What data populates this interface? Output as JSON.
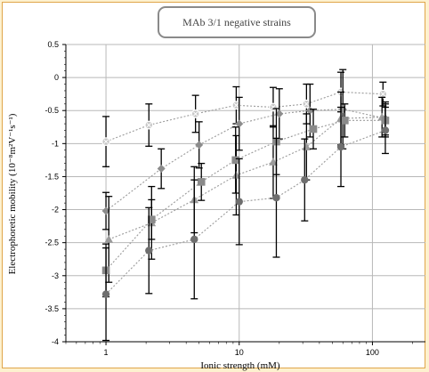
{
  "chart_data": {
    "type": "scatter",
    "title": "MAb 3/1 negative strains",
    "xlabel": "Ionic strength (mM)",
    "ylabel": "Electrophoretic mobility (10⁻⁸m²V⁻¹s⁻¹)",
    "x_scale": "log",
    "xlim": [
      0.5,
      250
    ],
    "ylim": [
      -4,
      0.5
    ],
    "x_ticks": [
      1,
      10,
      100
    ],
    "y_ticks": [
      0.5,
      0,
      -0.5,
      -1,
      -1.5,
      -2,
      -2.5,
      -3,
      -3.5,
      -4
    ],
    "x_tick_labels": [
      "1",
      "10",
      "100"
    ],
    "y_tick_labels": [
      "0.5",
      "0",
      "-0.5",
      "-1",
      "-1.5",
      "-2",
      "-2.5",
      "-3",
      "-3.5",
      "-4"
    ],
    "grid": true,
    "legend": "none",
    "colors": {
      "open_marker": "#c7c7c7",
      "diamond": "#8c8c8c",
      "triangle": "#9a9a9a",
      "square": "#8a8a8a",
      "circle": "#6e6e6e",
      "error_bar": "#000000",
      "trend_line": "#9a9a9a",
      "grid": "#b8b8b8",
      "border": "#e0a64a",
      "page_background": "#fdf1cf"
    },
    "series": [
      {
        "marker": "circle-open",
        "points": [
          {
            "x": 1,
            "y": -0.97,
            "err": 0.38
          },
          {
            "x": 2.1,
            "y": -0.72,
            "err": 0.32
          },
          {
            "x": 4.7,
            "y": -0.55,
            "err": 0.28
          },
          {
            "x": 9.5,
            "y": -0.42,
            "err": 0.28
          },
          {
            "x": 18,
            "y": -0.45,
            "err": 0.3
          },
          {
            "x": 32,
            "y": -0.4,
            "err": 0.3
          },
          {
            "x": 58,
            "y": -0.22,
            "err": 0.3
          },
          {
            "x": 120,
            "y": -0.25,
            "err": 0.18
          }
        ]
      },
      {
        "marker": "diamond",
        "points": [
          {
            "x": 1,
            "y": -2.02,
            "err": 0.28
          },
          {
            "x": 2.6,
            "y": -1.38,
            "err": 0.3
          },
          {
            "x": 5,
            "y": -1.02,
            "err": 0.35
          },
          {
            "x": 10,
            "y": -0.7,
            "err": 0.4
          },
          {
            "x": 20,
            "y": -0.55,
            "err": 0.38
          },
          {
            "x": 34,
            "y": -0.5,
            "err": 0.4
          },
          {
            "x": 60,
            "y": -0.48,
            "err": 0.6
          },
          {
            "x": 125,
            "y": -0.62,
            "err": 0.25
          }
        ]
      },
      {
        "marker": "triangle",
        "points": [
          {
            "x": 1.05,
            "y": -2.45,
            "err": 0.65
          },
          {
            "x": 2.2,
            "y": -2.2,
            "err": 0.55
          },
          {
            "x": 4.6,
            "y": -1.85,
            "err": 0.5
          },
          {
            "x": 9.5,
            "y": -1.48,
            "err": 0.6
          },
          {
            "x": 18,
            "y": -1.28,
            "err": 0.55
          },
          {
            "x": 32,
            "y": -1.05,
            "err": 0.5
          },
          {
            "x": 58,
            "y": -0.62,
            "err": 0.4
          },
          {
            "x": 118,
            "y": -0.6,
            "err": 0.3
          }
        ]
      },
      {
        "marker": "square",
        "points": [
          {
            "x": 1,
            "y": -2.92,
            "err": 0.4
          },
          {
            "x": 2.2,
            "y": -2.15,
            "err": 0.3
          },
          {
            "x": 5.2,
            "y": -1.58,
            "err": 0.28
          },
          {
            "x": 9.4,
            "y": -1.25,
            "err": 0.5
          },
          {
            "x": 19,
            "y": -0.97,
            "err": 0.5
          },
          {
            "x": 36,
            "y": -0.78,
            "err": 0.3
          },
          {
            "x": 62,
            "y": -0.65,
            "err": 0.25
          },
          {
            "x": 125,
            "y": -0.65,
            "err": 0.25
          }
        ]
      },
      {
        "marker": "circle",
        "points": [
          {
            "x": 1,
            "y": -3.28,
            "err": 0.7
          },
          {
            "x": 2.1,
            "y": -2.62,
            "err": 0.65
          },
          {
            "x": 4.6,
            "y": -2.45,
            "err": 0.9
          },
          {
            "x": 10,
            "y": -1.88,
            "err": 0.65
          },
          {
            "x": 19,
            "y": -1.82,
            "err": 0.9
          },
          {
            "x": 31,
            "y": -1.55,
            "err": 0.62
          },
          {
            "x": 58,
            "y": -1.05,
            "err": 0.6
          },
          {
            "x": 125,
            "y": -0.8,
            "err": 0.35
          }
        ]
      }
    ]
  }
}
